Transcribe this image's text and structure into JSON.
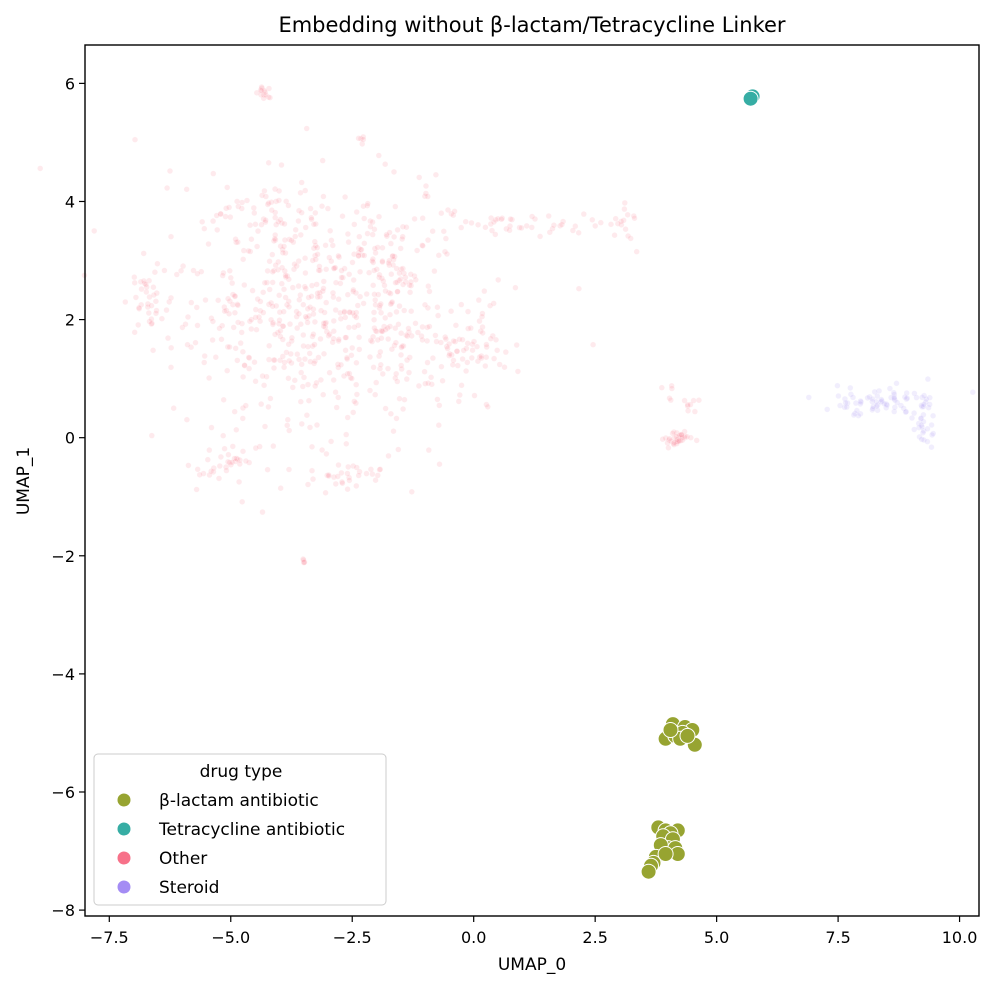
{
  "chart_data": {
    "type": "scatter",
    "title": "Embedding without β-lactam/Tetracycline Linker",
    "xlabel": "UMAP_0",
    "ylabel": "UMAP_1",
    "xlim": [
      -8.0,
      10.4
    ],
    "ylim": [
      -8.1,
      6.65
    ],
    "xticks": [
      -7.5,
      -5.0,
      -2.5,
      0.0,
      2.5,
      5.0,
      7.5,
      10.0
    ],
    "xtick_labels": [
      "−7.5",
      "−5.0",
      "−2.5",
      "0.0",
      "2.5",
      "5.0",
      "7.5",
      "10.0"
    ],
    "yticks": [
      -8,
      -6,
      -4,
      -2,
      0,
      2,
      4,
      6
    ],
    "ytick_labels": [
      "−8",
      "−6",
      "−4",
      "−2",
      "0",
      "2",
      "4",
      "6"
    ],
    "grid": false,
    "legend": {
      "title": "drug type",
      "placement": "lower-left"
    },
    "series": [
      {
        "name": "β-lactam antibiotic",
        "color": "#97a431",
        "alpha": 1.0,
        "marker": "large",
        "points": [
          [
            4.1,
            -4.85
          ],
          [
            4.35,
            -4.9
          ],
          [
            4.5,
            -4.95
          ],
          [
            3.95,
            -5.1
          ],
          [
            4.15,
            -5.05
          ],
          [
            4.3,
            -5.0
          ],
          [
            4.25,
            -5.1
          ],
          [
            4.55,
            -5.2
          ],
          [
            4.05,
            -4.95
          ],
          [
            4.4,
            -5.05
          ],
          [
            3.8,
            -6.6
          ],
          [
            3.95,
            -6.65
          ],
          [
            4.2,
            -6.65
          ],
          [
            4.05,
            -6.7
          ],
          [
            3.9,
            -6.75
          ],
          [
            4.1,
            -6.8
          ],
          [
            4.0,
            -6.95
          ],
          [
            3.85,
            -6.9
          ],
          [
            4.15,
            -6.95
          ],
          [
            4.2,
            -7.05
          ],
          [
            3.75,
            -7.1
          ],
          [
            3.95,
            -7.05
          ],
          [
            3.7,
            -7.2
          ],
          [
            3.65,
            -7.25
          ],
          [
            3.6,
            -7.35
          ]
        ]
      },
      {
        "name": "Tetracycline antibiotic",
        "color": "#36ada4",
        "alpha": 1.0,
        "marker": "large",
        "points": [
          [
            5.72,
            5.76
          ],
          [
            5.74,
            5.78
          ],
          [
            5.7,
            5.74
          ]
        ]
      },
      {
        "name": "Other",
        "color": "#f77189",
        "alpha": 0.15,
        "marker": "small",
        "points": []
      },
      {
        "name": "Steroid",
        "color": "#a48cf4",
        "alpha": 0.15,
        "marker": "small",
        "points": []
      }
    ]
  }
}
